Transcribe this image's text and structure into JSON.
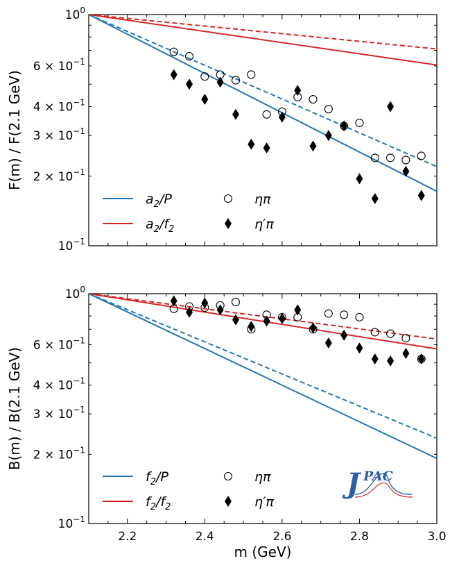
{
  "chart_data": [
    {
      "type": "line",
      "panel": "top",
      "ylabel": "F(m) / F(2.1 GeV)",
      "xlabel": "",
      "xlim": [
        2.1,
        3.0
      ],
      "ylim": [
        0.1,
        1.0
      ],
      "yscale": "log",
      "legend_position": "lower-left",
      "y_tick_labels": [
        "10^0",
        "6 × 10^-1",
        "4 × 10^-1",
        "3 × 10^-1",
        "2 × 10^-1",
        "10^-1"
      ],
      "y_tick_values": [
        1.0,
        0.6,
        0.4,
        0.3,
        0.2,
        0.1
      ],
      "series": [
        {
          "name": "a2/P",
          "color": "#1f77b4",
          "style": "solid",
          "x": [
            2.1,
            3.0
          ],
          "y": [
            1.0,
            0.172
          ]
        },
        {
          "name": "",
          "color": "#1f77b4",
          "style": "dashed",
          "x": [
            2.1,
            3.0
          ],
          "y": [
            1.0,
            0.22
          ]
        },
        {
          "name": "a2/f2",
          "color": "#d62728",
          "style": "solid",
          "x": [
            2.1,
            3.0
          ],
          "y": [
            1.0,
            0.605
          ]
        },
        {
          "name": "",
          "color": "#d62728",
          "style": "dashed",
          "x": [
            2.1,
            3.0
          ],
          "y": [
            1.0,
            0.71
          ]
        }
      ],
      "points": [
        {
          "name": "ηπ",
          "marker": "open-circle",
          "x": [
            2.32,
            2.36,
            2.4,
            2.44,
            2.48,
            2.52,
            2.56,
            2.6,
            2.64,
            2.68,
            2.72,
            2.76,
            2.8,
            2.84,
            2.88,
            2.92,
            2.96
          ],
          "y": [
            0.69,
            0.66,
            0.54,
            0.55,
            0.52,
            0.55,
            0.37,
            0.38,
            0.44,
            0.43,
            0.39,
            0.33,
            0.34,
            0.24,
            0.24,
            0.235,
            0.245
          ]
        },
        {
          "name": "η′π",
          "marker": "filled-diamond",
          "x": [
            2.32,
            2.36,
            2.4,
            2.44,
            2.48,
            2.52,
            2.56,
            2.6,
            2.64,
            2.68,
            2.72,
            2.76,
            2.8,
            2.84,
            2.88,
            2.92,
            2.96
          ],
          "y": [
            0.55,
            0.5,
            0.43,
            0.51,
            0.37,
            0.275,
            0.265,
            0.36,
            0.47,
            0.27,
            0.3,
            0.33,
            0.195,
            0.16,
            0.4,
            0.21,
            0.165
          ]
        }
      ],
      "legend_labels": {
        "s1_base": "a",
        "s1_sub": "2",
        "s1_tail": "/P",
        "s2_base": "a",
        "s2_sub": "2",
        "s2_mid": "/f",
        "s2_sub2": "2",
        "p1": "ηπ",
        "p2": "η′π"
      }
    },
    {
      "type": "line",
      "panel": "bottom",
      "ylabel": "B(m) / B(2.1 GeV)",
      "xlabel": "m (GeV)",
      "xlim": [
        2.1,
        3.0
      ],
      "ylim": [
        0.1,
        1.0
      ],
      "yscale": "log",
      "legend_position": "lower-left",
      "x_tick_labels": [
        "2.2",
        "2.4",
        "2.6",
        "2.8",
        "3.0"
      ],
      "x_tick_values": [
        2.2,
        2.4,
        2.6,
        2.8,
        3.0
      ],
      "y_tick_labels": [
        "10^0",
        "6 × 10^-1",
        "4 × 10^-1",
        "3 × 10^-1",
        "2 × 10^-1",
        "10^-1"
      ],
      "y_tick_values": [
        1.0,
        0.6,
        0.4,
        0.3,
        0.2,
        0.1
      ],
      "series": [
        {
          "name": "f2/P",
          "color": "#1f77b4",
          "style": "solid",
          "x": [
            2.1,
            3.0
          ],
          "y": [
            1.0,
            0.192
          ]
        },
        {
          "name": "",
          "color": "#1f77b4",
          "style": "dashed",
          "x": [
            2.1,
            3.0
          ],
          "y": [
            1.0,
            0.235
          ]
        },
        {
          "name": "f2/f2",
          "color": "#d62728",
          "style": "solid",
          "x": [
            2.1,
            3.0
          ],
          "y": [
            1.0,
            0.575
          ]
        },
        {
          "name": "",
          "color": "#d62728",
          "style": "dashed",
          "x": [
            2.1,
            3.0
          ],
          "y": [
            1.0,
            0.635
          ]
        }
      ],
      "points": [
        {
          "name": "ηπ",
          "marker": "open-circle",
          "x": [
            2.32,
            2.36,
            2.4,
            2.44,
            2.48,
            2.52,
            2.56,
            2.6,
            2.64,
            2.68,
            2.72,
            2.76,
            2.8,
            2.84,
            2.88,
            2.92,
            2.96
          ],
          "y": [
            0.86,
            0.88,
            0.87,
            0.89,
            0.92,
            0.7,
            0.81,
            0.79,
            0.79,
            0.7,
            0.82,
            0.81,
            0.79,
            0.68,
            0.67,
            0.64,
            0.52
          ]
        },
        {
          "name": "η′π",
          "marker": "filled-diamond",
          "x": [
            2.32,
            2.36,
            2.4,
            2.44,
            2.48,
            2.52,
            2.56,
            2.6,
            2.64,
            2.68,
            2.72,
            2.76,
            2.8,
            2.84,
            2.88,
            2.92,
            2.96
          ],
          "y": [
            0.93,
            0.83,
            0.91,
            0.85,
            0.77,
            0.72,
            0.76,
            0.78,
            0.85,
            0.71,
            0.61,
            0.66,
            0.58,
            0.52,
            0.51,
            0.55,
            0.52
          ]
        }
      ],
      "legend_labels": {
        "s1_base": "f",
        "s1_sub": "2",
        "s1_tail": "/P",
        "s2_base": "f",
        "s2_sub": "2",
        "s2_mid": "/f",
        "s2_sub2": "2",
        "p1": "ηπ",
        "p2": "η′π"
      }
    }
  ],
  "logo": {
    "text_j": "J",
    "text_pac": "PAC"
  }
}
